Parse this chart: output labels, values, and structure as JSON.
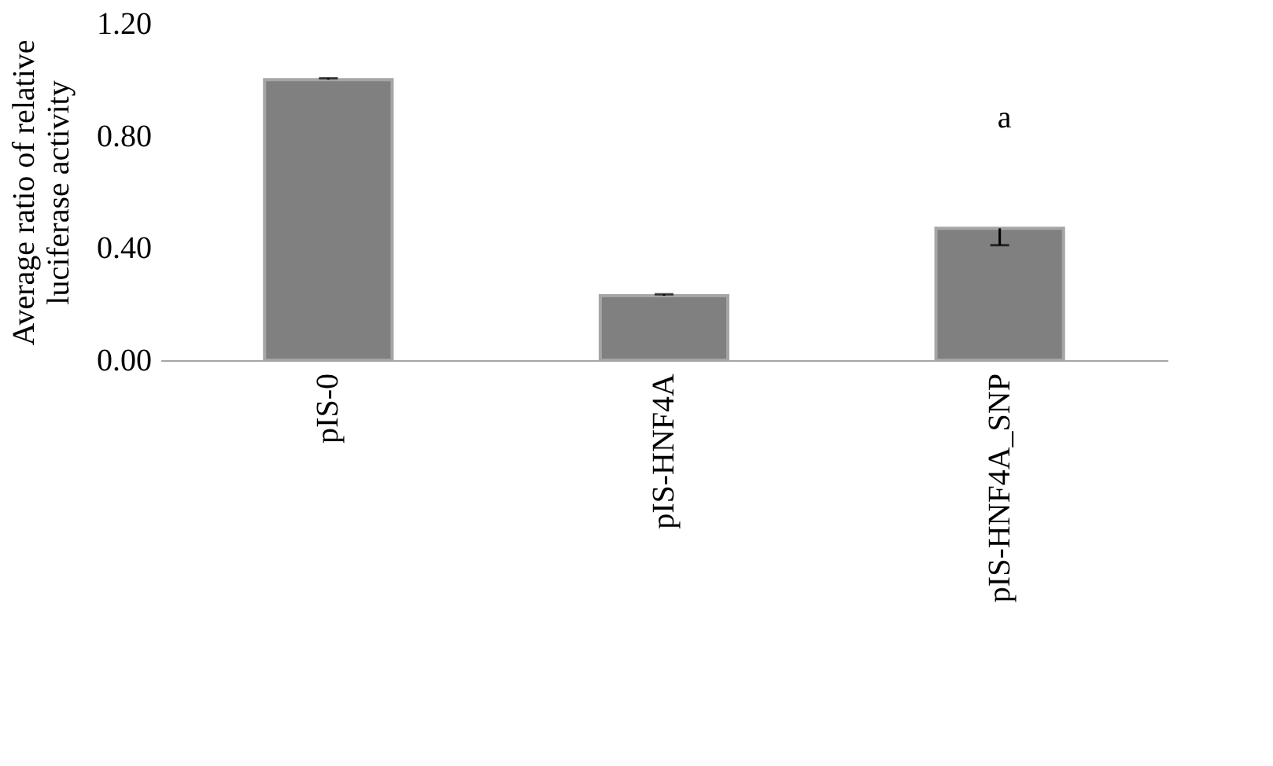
{
  "chart_data": {
    "type": "bar",
    "ylabel": "Average ratio of relative\nluciferase activity",
    "categories": [
      "pIS-0",
      "pIS-HNF4A",
      "pIS-HNF4A_SNP"
    ],
    "values": [
      1.0,
      0.23,
      0.47
    ],
    "color": "#808080",
    "errors": [
      [
        1.0,
        1.005
      ],
      [
        0.23,
        0.235
      ],
      [
        0.41,
        0.47
      ]
    ],
    "ylim": [
      0,
      1.2
    ],
    "yticks": [
      {
        "value": 0,
        "label": "0.00"
      },
      {
        "value": 0.4,
        "label": "0.40"
      },
      {
        "value": 0.8,
        "label": "0.80"
      },
      {
        "value": 1.2,
        "label": "1.20"
      }
    ],
    "annotations": [
      "a"
    ],
    "grid": false
  }
}
